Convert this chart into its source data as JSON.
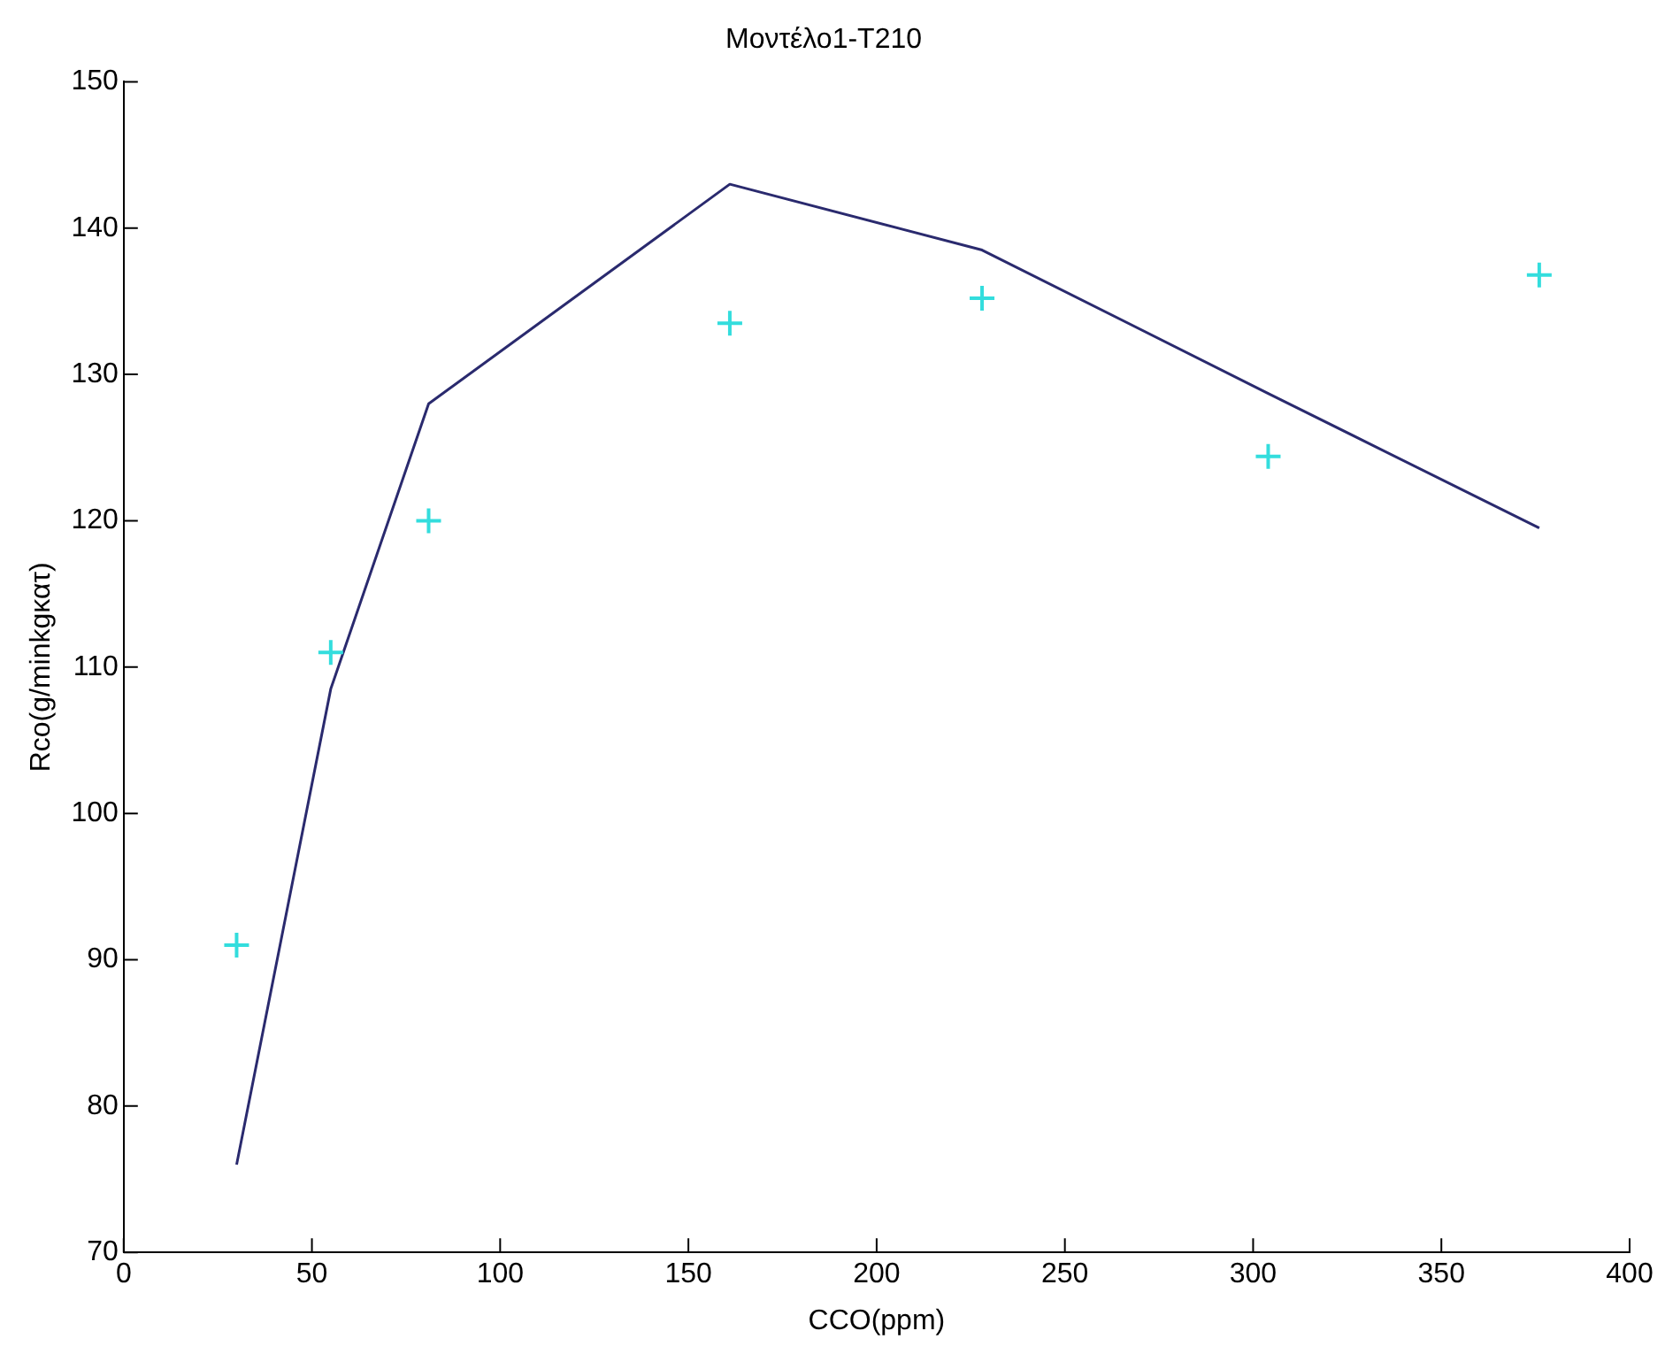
{
  "chart_data": {
    "type": "scatter",
    "title": "Μοντέλο1-T210",
    "xlabel": "CCO(ppm)",
    "ylabel": "Rco(g/minkgκατ)",
    "xlim": [
      0,
      400
    ],
    "xticks": [
      0,
      50,
      100,
      150,
      200,
      250,
      300,
      350,
      400
    ],
    "ylim": [
      70,
      150
    ],
    "yticks": [
      70,
      80,
      90,
      100,
      110,
      120,
      130,
      140,
      150
    ],
    "grid": false,
    "legend": false,
    "series": [
      {
        "color": "#33dddd",
        "marker": "cross",
        "x": [
          30,
          55,
          81,
          161,
          228,
          304,
          376
        ],
        "values": [
          91,
          111,
          120,
          133.5,
          135.2,
          124.4,
          136.8
        ]
      },
      {
        "type": "line",
        "color": "#2a2a6e",
        "marker": "none",
        "line_style": "solid",
        "x": [
          30,
          55,
          81,
          161,
          228,
          304,
          376
        ],
        "values": [
          76,
          108.5,
          128,
          143,
          138.5,
          128.7,
          119.5
        ]
      }
    ]
  }
}
